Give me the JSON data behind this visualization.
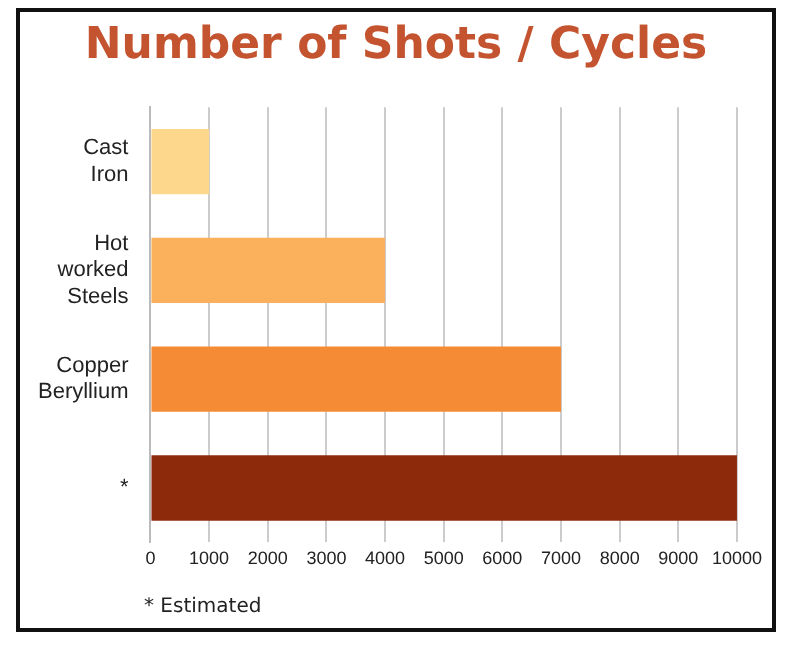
{
  "chart_data": {
    "type": "bar",
    "orientation": "horizontal",
    "title": "Number of Shots / Cycles",
    "categories": [
      "Cast\nIron",
      "Hot\nworked\nSteels",
      "Copper\nBeryllium",
      "*"
    ],
    "values": [
      1000,
      4000,
      7000,
      10000
    ],
    "colors": [
      "#fdd78c",
      "#fbb05c",
      "#f68b35",
      "#8e2a0c"
    ],
    "xlim": [
      0,
      10000
    ],
    "xticks": [
      0,
      1000,
      2000,
      3000,
      4000,
      5000,
      6000,
      7000,
      8000,
      9000,
      10000
    ],
    "grid": "x",
    "legend": false,
    "annotations": [
      "* Estimated"
    ]
  }
}
